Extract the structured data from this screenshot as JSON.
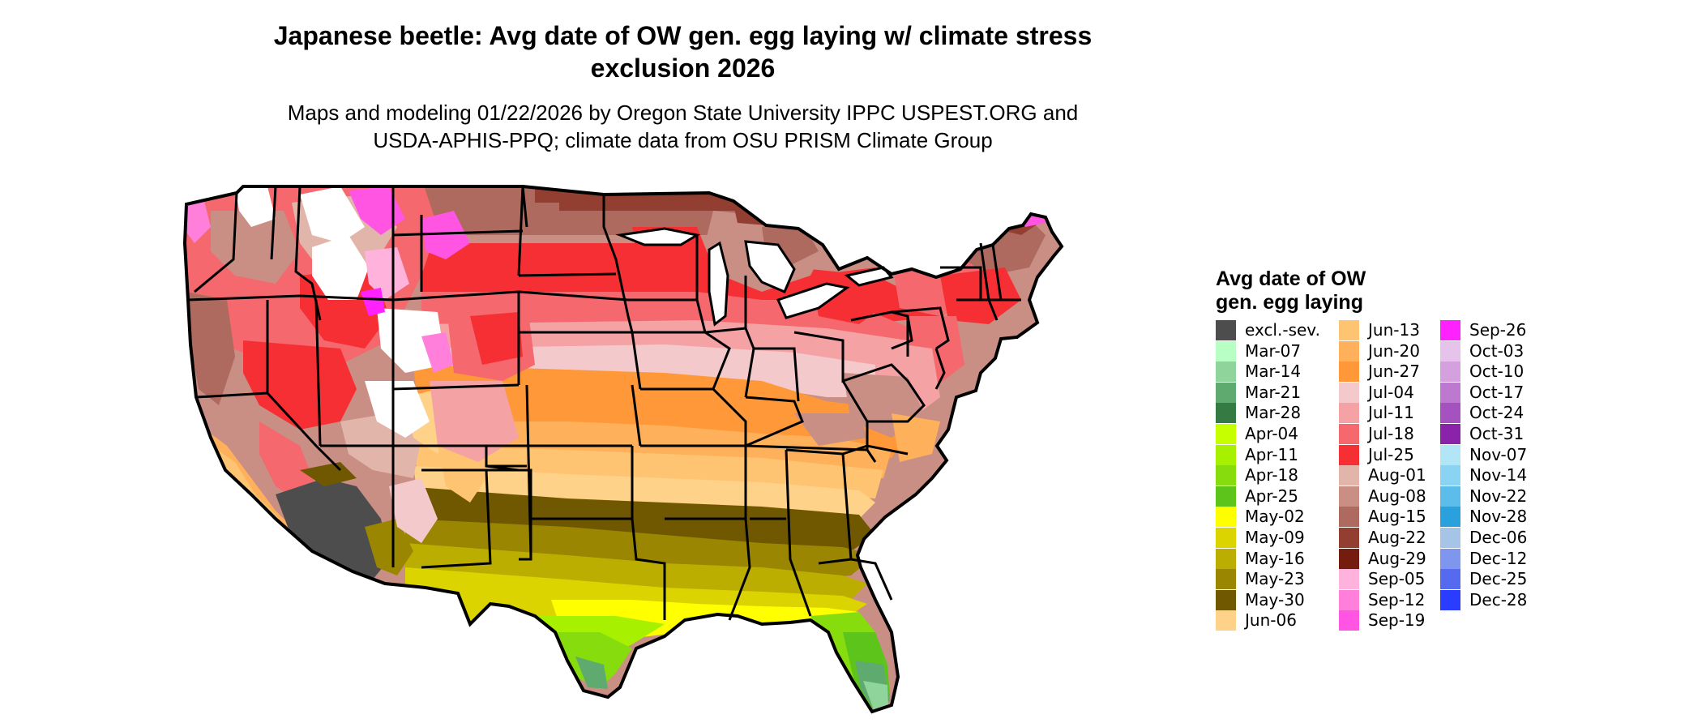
{
  "title": {
    "line1": "Japanese beetle: Avg date of OW gen. egg laying w/ climate stress",
    "line2": "exclusion 2026"
  },
  "subtitle": {
    "line1": "Maps and modeling 01/22/2026 by Oregon State University IPPC USPEST.ORG and",
    "line2": "USDA-APHIS-PPQ; climate data from OSU PRISM Climate Group"
  },
  "legend": {
    "title_line1": "Avg date of OW",
    "title_line2": "gen. egg laying",
    "columns": [
      [
        {
          "label": "excl.-sev.",
          "color": "#4d4d4d"
        },
        {
          "label": "Mar-07",
          "color": "#b8ffc4"
        },
        {
          "label": "Mar-14",
          "color": "#8fd49a"
        },
        {
          "label": "Mar-21",
          "color": "#5faa6e"
        },
        {
          "label": "Mar-28",
          "color": "#357a43"
        },
        {
          "label": "Apr-04",
          "color": "#c6ff00"
        },
        {
          "label": "Apr-11",
          "color": "#a6f000"
        },
        {
          "label": "Apr-18",
          "color": "#86dc0c"
        },
        {
          "label": "Apr-25",
          "color": "#5cc41a"
        },
        {
          "label": "May-02",
          "color": "#ffff00"
        },
        {
          "label": "May-09",
          "color": "#dcd400"
        },
        {
          "label": "May-16",
          "color": "#bcae00"
        },
        {
          "label": "May-23",
          "color": "#9a8600"
        },
        {
          "label": "May-30",
          "color": "#705800"
        },
        {
          "label": "Jun-06",
          "color": "#ffd28a"
        }
      ],
      [
        {
          "label": "Jun-13",
          "color": "#ffc472"
        },
        {
          "label": "Jun-20",
          "color": "#ffb05a"
        },
        {
          "label": "Jun-27",
          "color": "#ff9838"
        },
        {
          "label": "Jul-04",
          "color": "#f4c9cb"
        },
        {
          "label": "Jul-11",
          "color": "#f5a2a5"
        },
        {
          "label": "Jul-18",
          "color": "#f4686e"
        },
        {
          "label": "Jul-25",
          "color": "#f52f34"
        },
        {
          "label": "Aug-01",
          "color": "#e2b5ab"
        },
        {
          "label": "Aug-08",
          "color": "#c98f84"
        },
        {
          "label": "Aug-15",
          "color": "#ae6a5f"
        },
        {
          "label": "Aug-22",
          "color": "#923f32"
        },
        {
          "label": "Aug-29",
          "color": "#741c0e"
        },
        {
          "label": "Sep-05",
          "color": "#ffb3dc"
        },
        {
          "label": "Sep-12",
          "color": "#ff7fdb"
        },
        {
          "label": "Sep-19",
          "color": "#ff55e2"
        }
      ],
      [
        {
          "label": "Sep-26",
          "color": "#ff22ff"
        },
        {
          "label": "Oct-03",
          "color": "#e6c3ea"
        },
        {
          "label": "Oct-10",
          "color": "#d4a0de"
        },
        {
          "label": "Oct-17",
          "color": "#bd78cf"
        },
        {
          "label": "Oct-24",
          "color": "#a551c0"
        },
        {
          "label": "Oct-31",
          "color": "#8a22aa"
        },
        {
          "label": "Nov-07",
          "color": "#b2e6f6"
        },
        {
          "label": "Nov-14",
          "color": "#8bd3f2"
        },
        {
          "label": "Nov-22",
          "color": "#5cbcea"
        },
        {
          "label": "Nov-28",
          "color": "#2aa0dc"
        },
        {
          "label": "Dec-06",
          "color": "#a6c4e6"
        },
        {
          "label": "Dec-12",
          "color": "#7e96ee"
        },
        {
          "label": "Dec-25",
          "color": "#556aee"
        },
        {
          "label": "Dec-28",
          "color": "#2a3cff"
        }
      ]
    ]
  },
  "map": {
    "palette": {
      "outline": "#000000",
      "exclusion": "#4d4d4d",
      "no_data": "#ffffff"
    }
  }
}
